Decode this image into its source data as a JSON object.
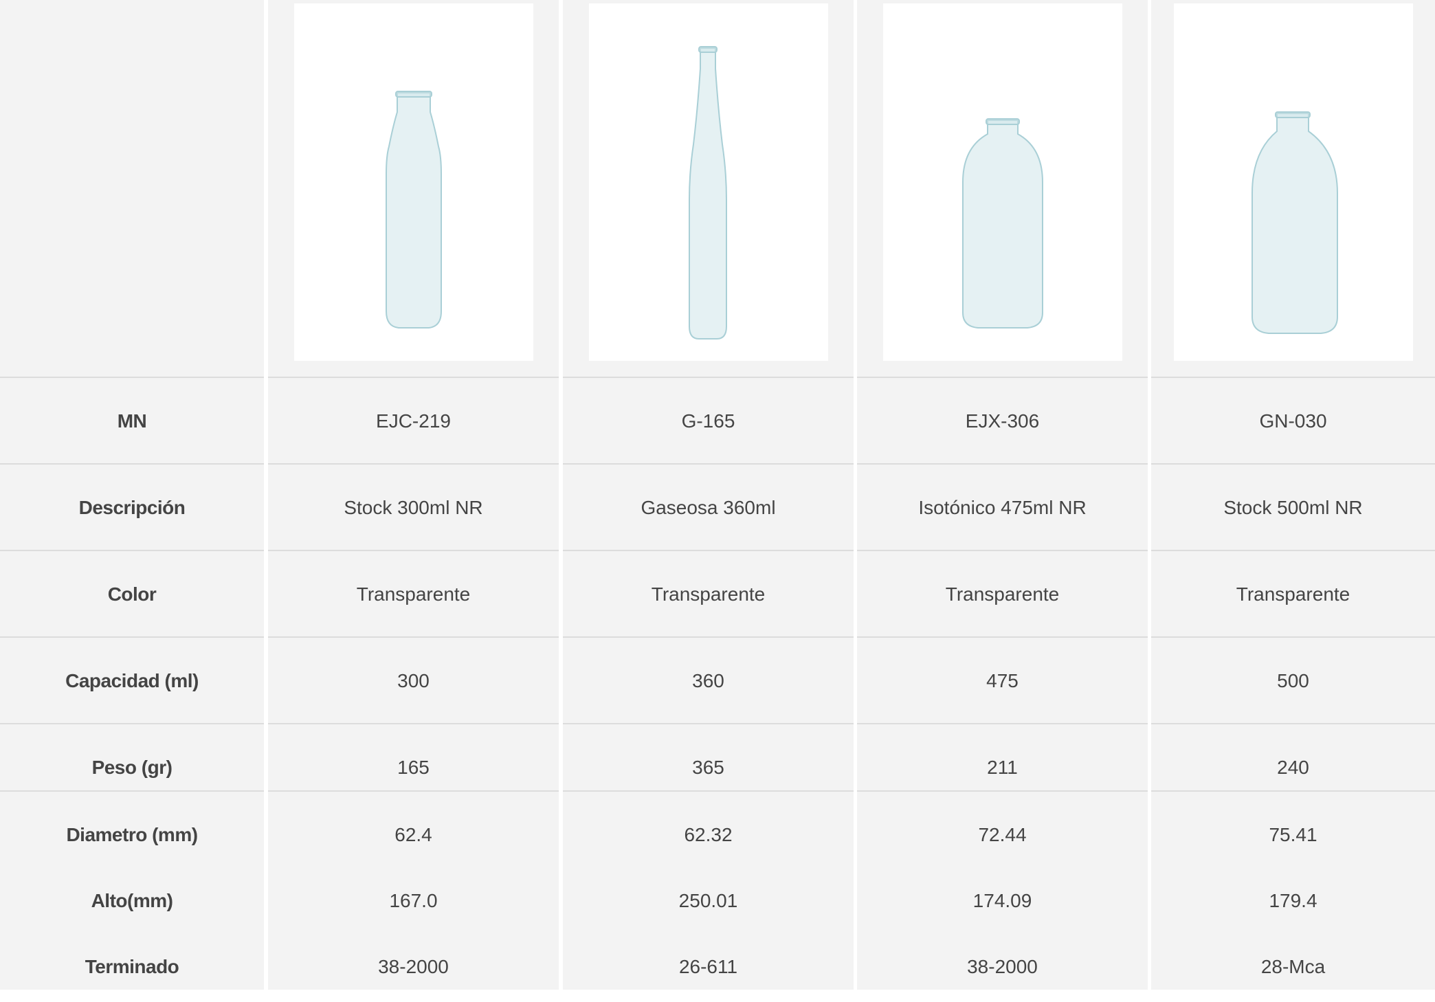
{
  "row_labels": [
    "MN",
    "Descripción",
    "Color",
    "Capacidad (ml)",
    "Peso (gr)",
    "Diametro (mm)",
    "Alto(mm)",
    "Terminado"
  ],
  "products": [
    {
      "image": "bottle-stock-300ml",
      "mn": "EJC-219",
      "descripcion": "Stock 300ml NR",
      "color": "Transparente",
      "capacidad": "300",
      "peso": "165",
      "diametro": "62.4",
      "alto": "167.0",
      "terminado": "38-2000"
    },
    {
      "image": "bottle-gaseosa-360ml",
      "mn": "G-165",
      "descripcion": "Gaseosa 360ml",
      "color": "Transparente",
      "capacidad": "360",
      "peso": "365",
      "diametro": "62.32",
      "alto": "250.01",
      "terminado": "26-611"
    },
    {
      "image": "bottle-isotonico-475ml",
      "mn": "EJX-306",
      "descripcion": "Isotónico 475ml NR",
      "color": "Transparente",
      "capacidad": "475",
      "peso": "211",
      "diametro": "72.44",
      "alto": "174.09",
      "terminado": "38-2000"
    },
    {
      "image": "bottle-stock-500ml",
      "mn": "GN-030",
      "descripcion": "Stock 500ml NR",
      "color": "Transparente",
      "capacidad": "500",
      "peso": "240",
      "diametro": "75.41",
      "alto": "179.4",
      "terminado": "28-Mca"
    }
  ],
  "colors": {
    "background": "#f3f3f3",
    "divider": "#dcdcdc",
    "text": "#444444",
    "glass": "#cfe6ea"
  }
}
